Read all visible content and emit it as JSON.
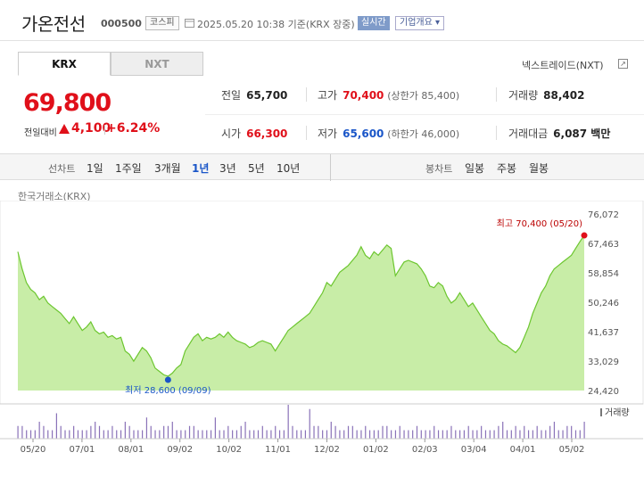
{
  "header": {
    "name": "가온전선",
    "code": "000500",
    "market": "코스피",
    "datetime": "2025.05.20 10:38 기준(KRX 장중)",
    "realtime": "실시간",
    "corp_info": "기업개요"
  },
  "tabs": {
    "krx": "KRX",
    "nxt": "NXT"
  },
  "nxt_link": "넥스트레이드(NXT)",
  "quote": {
    "price": "69,800",
    "diff_label": "전일대비",
    "diff": "4,100",
    "pct": "+6.24%"
  },
  "stats": {
    "prev_label": "전일",
    "prev": "65,700",
    "high_label": "고가",
    "high": "70,400",
    "high_limit": "(상한가 85,400)",
    "vol_label": "거래량",
    "vol": "88,402",
    "open_label": "시가",
    "open": "66,300",
    "low_label": "저가",
    "low": "65,600",
    "low_limit": "(하한가 46,000)",
    "amt_label": "거래대금",
    "amt": "6,087 백만"
  },
  "controls": {
    "line_label": "선차트",
    "periods": [
      "1일",
      "1주일",
      "3개월",
      "1년",
      "3년",
      "5년",
      "10년"
    ],
    "active_period": "1년",
    "candle_label": "봉차트",
    "candles": [
      "일봉",
      "주봉",
      "월봉"
    ]
  },
  "source_label": "한국거래소(KRX)",
  "colors": {
    "up": "#e0101a",
    "down": "#1a56c8",
    "area_line": "#6cc62f",
    "area_fill": "#c8eda7",
    "vol_bar": "#8a72b8"
  },
  "chart_data": {
    "type": "area",
    "yticks": [
      "76,072",
      "67,463",
      "58,854",
      "50,246",
      "41,637",
      "33,029",
      "24,420"
    ],
    "ylim": [
      24420,
      76072
    ],
    "xticks": [
      "05/20",
      "07/01",
      "08/01",
      "09/02",
      "10/02",
      "11/01",
      "12/02",
      "01/02",
      "02/03",
      "03/04",
      "04/01",
      "05/02"
    ],
    "high_label": "최고 70,400 (05/20)",
    "low_label": "최저 28,600 (09/09)",
    "volume_label": "거래량",
    "prices": [
      65000,
      60000,
      56000,
      54000,
      53000,
      51000,
      52000,
      50000,
      49000,
      48000,
      47000,
      45500,
      44000,
      46000,
      44000,
      42000,
      43000,
      44500,
      42000,
      41000,
      41500,
      40000,
      40500,
      39500,
      40000,
      36000,
      35000,
      33000,
      35000,
      37000,
      36000,
      34000,
      31000,
      30000,
      29000,
      28600,
      29500,
      31000,
      32000,
      36000,
      38000,
      40000,
      41000,
      39000,
      40000,
      39500,
      40000,
      41000,
      40000,
      41500,
      40000,
      39000,
      38500,
      38000,
      37000,
      37500,
      38500,
      39000,
      38500,
      38000,
      36000,
      38000,
      40000,
      42000,
      43000,
      44000,
      45000,
      46000,
      47000,
      49000,
      51000,
      53000,
      56000,
      55000,
      57000,
      59000,
      60000,
      61000,
      62500,
      64000,
      66500,
      64000,
      63000,
      65000,
      64000,
      65500,
      67000,
      66000,
      58000,
      60000,
      62000,
      62500,
      62000,
      61500,
      60000,
      58000,
      55000,
      54500,
      56000,
      55000,
      52000,
      50000,
      51000,
      53000,
      51000,
      49000,
      50000,
      48000,
      46000,
      44000,
      42000,
      41000,
      39000,
      38000,
      37500,
      36500,
      35500,
      37000,
      40000,
      43000,
      47000,
      50000,
      53000,
      55000,
      58000,
      60000,
      61000,
      62000,
      63000,
      64000,
      66000,
      68000,
      69800
    ],
    "volumes": [
      3,
      3,
      2,
      2,
      2,
      4,
      3,
      2,
      2,
      6,
      3,
      2,
      2,
      3,
      2,
      2,
      2,
      3,
      4,
      3,
      2,
      2,
      3,
      2,
      2,
      4,
      3,
      2,
      2,
      2,
      5,
      3,
      2,
      2,
      3,
      3,
      4,
      2,
      2,
      2,
      3,
      3,
      2,
      2,
      2,
      2,
      5,
      2,
      2,
      3,
      2,
      2,
      3,
      4,
      2,
      2,
      2,
      3,
      2,
      2,
      3,
      2,
      2,
      8,
      3,
      2,
      2,
      2,
      7,
      3,
      3,
      2,
      2,
      4,
      3,
      2,
      2,
      3,
      3,
      2,
      2,
      3,
      2,
      2,
      2,
      3,
      3,
      2,
      2,
      3,
      2,
      2,
      2,
      3,
      2,
      2,
      2,
      3,
      2,
      2,
      2,
      3,
      2,
      2,
      2,
      3,
      2,
      2,
      3,
      2,
      2,
      2,
      3,
      4,
      2,
      2,
      3,
      2,
      3,
      2,
      2,
      3,
      2,
      2,
      3,
      4,
      2,
      2,
      3,
      3,
      2,
      2,
      4
    ]
  }
}
